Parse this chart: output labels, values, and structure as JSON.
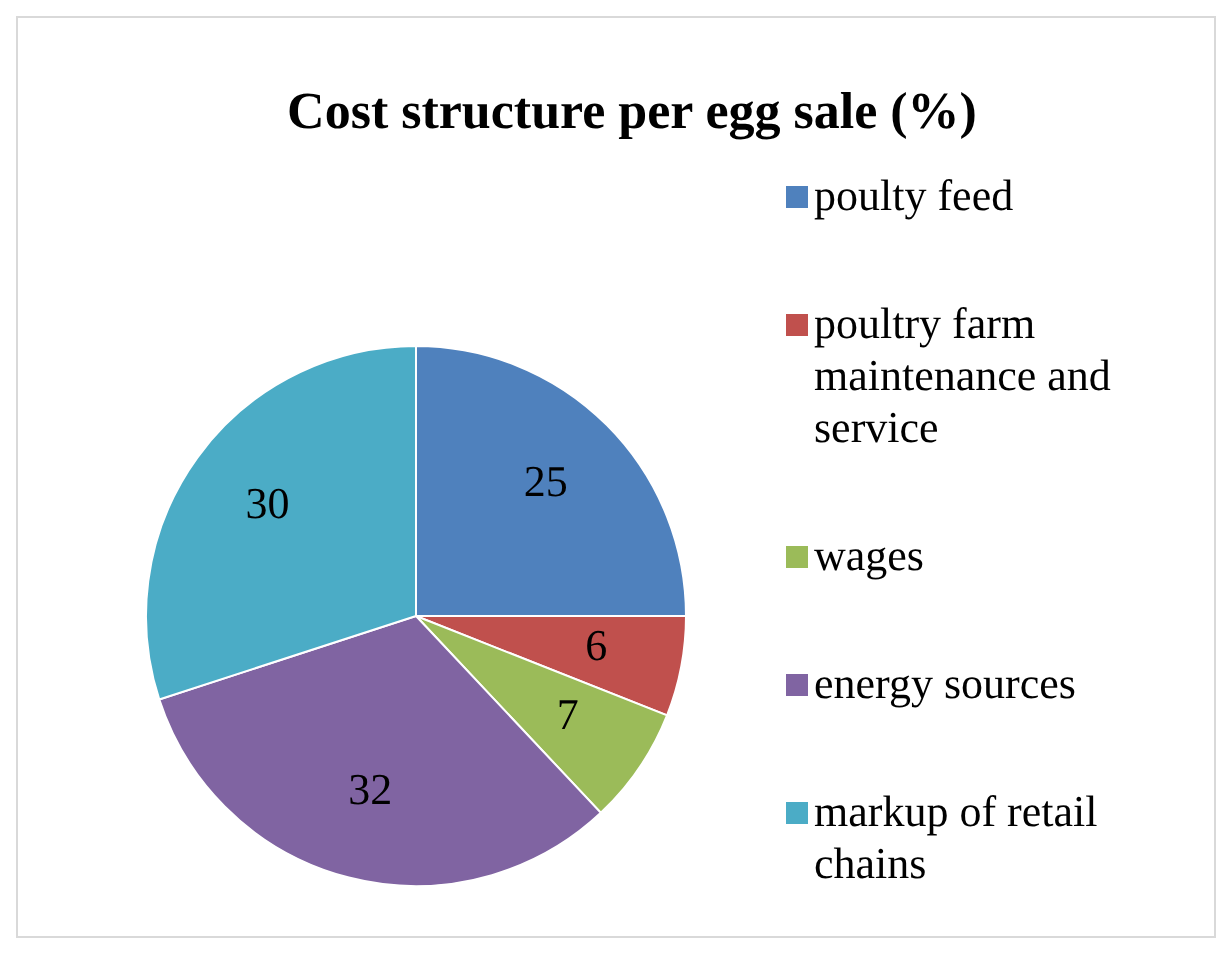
{
  "chart_data": {
    "type": "pie",
    "title": "Cost structure per egg sale (%)",
    "categories": [
      "poulty feed",
      "poultry farm maintenance and service",
      "wages",
      "energy sources",
      "markup of retail chains"
    ],
    "values": [
      25,
      6,
      7,
      32,
      30
    ],
    "colors": [
      "#4f81bd",
      "#c0504d",
      "#9bbb59",
      "#8064a2",
      "#4bacc6"
    ],
    "data_labels": true,
    "legend": "right"
  }
}
